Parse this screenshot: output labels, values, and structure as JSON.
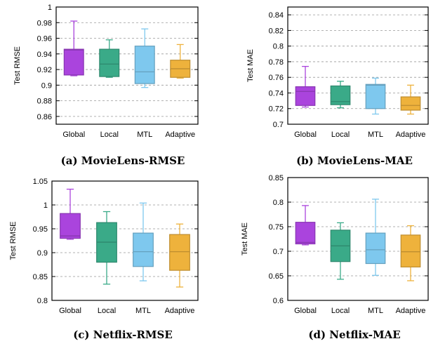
{
  "colors": {
    "Global": "#aa44dd",
    "Local": "#3aaa88",
    "MTL": "#7ec8ee",
    "Adaptive": "#eeb23c"
  },
  "chart_data": [
    {
      "type": "box",
      "caption": "(a) MovieLens-RMSE",
      "ylabel": "Test RMSE",
      "ylim": [
        0.85,
        1.0
      ],
      "yticks": [
        0.86,
        0.88,
        0.9,
        0.92,
        0.94,
        0.96,
        0.98,
        1
      ],
      "ytick_labels": [
        "0.86",
        "0.88",
        "0.9",
        "0.92",
        "0.94",
        "0.96",
        "0.98",
        "1"
      ],
      "categories": [
        "Global",
        "Local",
        "MTL",
        "Adaptive"
      ],
      "boxes": [
        {
          "min": 0.912,
          "q1": 0.913,
          "median": 0.945,
          "q3": 0.946,
          "max": 0.982
        },
        {
          "min": 0.91,
          "q1": 0.911,
          "median": 0.927,
          "q3": 0.946,
          "max": 0.958
        },
        {
          "min": 0.897,
          "q1": 0.902,
          "median": 0.917,
          "q3": 0.95,
          "max": 0.972
        },
        {
          "min": 0.909,
          "q1": 0.91,
          "median": 0.921,
          "q3": 0.932,
          "max": 0.952
        }
      ],
      "grid": true
    },
    {
      "type": "box",
      "caption": "(b) MovieLens-MAE",
      "ylabel": "Test MAE",
      "ylim": [
        0.7,
        0.85
      ],
      "yticks": [
        0.7,
        0.72,
        0.74,
        0.76,
        0.78,
        0.8,
        0.82,
        0.84
      ],
      "ytick_labels": [
        "0.7",
        "0.72",
        "0.74",
        "0.76",
        "0.78",
        "0.8",
        "0.82",
        "0.84"
      ],
      "categories": [
        "Global",
        "Local",
        "MTL",
        "Adaptive"
      ],
      "boxes": [
        {
          "min": 0.722,
          "q1": 0.724,
          "median": 0.742,
          "q3": 0.748,
          "max": 0.774
        },
        {
          "min": 0.721,
          "q1": 0.725,
          "median": 0.729,
          "q3": 0.749,
          "max": 0.755
        },
        {
          "min": 0.713,
          "q1": 0.72,
          "median": 0.75,
          "q3": 0.751,
          "max": 0.759
        },
        {
          "min": 0.713,
          "q1": 0.718,
          "median": 0.724,
          "q3": 0.735,
          "max": 0.75
        }
      ],
      "grid": true
    },
    {
      "type": "box",
      "caption": "(c) Netflix-RMSE",
      "ylabel": "Test RMSE",
      "ylim": [
        0.8,
        1.05
      ],
      "yticks": [
        0.8,
        0.85,
        0.9,
        0.95,
        1,
        1.05
      ],
      "ytick_labels": [
        "0.8",
        "0.85",
        "0.9",
        "0.95",
        "1",
        "1.05"
      ],
      "categories": [
        "Global",
        "Local",
        "MTL",
        "Adaptive"
      ],
      "boxes": [
        {
          "min": 0.928,
          "q1": 0.93,
          "median": 0.935,
          "q3": 0.982,
          "max": 1.033
        },
        {
          "min": 0.834,
          "q1": 0.88,
          "median": 0.922,
          "q3": 0.963,
          "max": 0.986
        },
        {
          "min": 0.841,
          "q1": 0.871,
          "median": 0.902,
          "q3": 0.941,
          "max": 1.004
        },
        {
          "min": 0.828,
          "q1": 0.863,
          "median": 0.902,
          "q3": 0.938,
          "max": 0.96
        }
      ],
      "grid": true
    },
    {
      "type": "box",
      "caption": "(d) Netflix-MAE",
      "ylabel": "Test MAE",
      "ylim": [
        0.6,
        0.85
      ],
      "yticks": [
        0.6,
        0.65,
        0.7,
        0.75,
        0.8,
        0.85
      ],
      "ytick_labels": [
        "0.6",
        "0.65",
        "0.7",
        "0.75",
        "0.8",
        "0.85"
      ],
      "categories": [
        "Global",
        "Local",
        "MTL",
        "Adaptive"
      ],
      "boxes": [
        {
          "min": 0.713,
          "q1": 0.715,
          "median": 0.718,
          "q3": 0.759,
          "max": 0.793
        },
        {
          "min": 0.643,
          "q1": 0.679,
          "median": 0.711,
          "q3": 0.743,
          "max": 0.758
        },
        {
          "min": 0.651,
          "q1": 0.675,
          "median": 0.703,
          "q3": 0.737,
          "max": 0.806
        },
        {
          "min": 0.64,
          "q1": 0.668,
          "median": 0.699,
          "q3": 0.733,
          "max": 0.752
        }
      ],
      "grid": true
    }
  ]
}
